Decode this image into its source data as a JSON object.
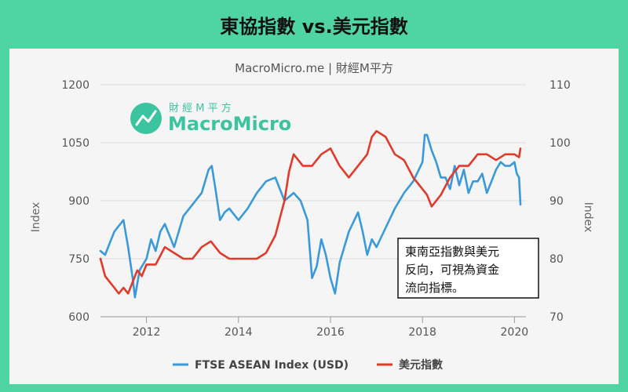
{
  "header": {
    "title": "東協指數 vs.美元指數"
  },
  "logo": {
    "sub": "財 經 M 平 方",
    "main": "MacroMicro",
    "color": "#3cc3a0"
  },
  "annotation": {
    "lines": [
      "東南亞指數與美元",
      "反向，可視為資金",
      "流向指標。"
    ]
  },
  "chart_data": {
    "type": "line",
    "title": "MacroMicro.me | 財經M平方",
    "ylabel_left": "Index",
    "ylabel_right": "Index",
    "ylim_left": [
      600,
      1200
    ],
    "ylim_right": [
      70,
      110
    ],
    "yticks_left": [
      "600",
      "750",
      "900",
      "1050",
      "1200"
    ],
    "yticks_right": [
      "70",
      "80",
      "90",
      "100",
      "110"
    ],
    "xlim": [
      2011.0,
      2020.25
    ],
    "xticks": [
      "2012",
      "2014",
      "2016",
      "2018",
      "2020"
    ],
    "legend_position": "bottom",
    "series": [
      {
        "name": "FTSE ASEAN Index (USD)",
        "color": "#3a9ad9",
        "axis": "left",
        "x": [
          2011.0,
          2011.1,
          2011.2,
          2011.3,
          2011.4,
          2011.5,
          2011.6,
          2011.7,
          2011.75,
          2011.85,
          2012.0,
          2012.1,
          2012.2,
          2012.3,
          2012.4,
          2012.5,
          2012.6,
          2012.8,
          2013.0,
          2013.2,
          2013.35,
          2013.42,
          2013.5,
          2013.6,
          2013.7,
          2013.8,
          2014.0,
          2014.2,
          2014.4,
          2014.6,
          2014.8,
          2015.0,
          2015.2,
          2015.35,
          2015.5,
          2015.6,
          2015.7,
          2015.8,
          2015.9,
          2016.0,
          2016.1,
          2016.2,
          2016.4,
          2016.6,
          2016.7,
          2016.8,
          2016.9,
          2017.0,
          2017.2,
          2017.4,
          2017.6,
          2017.8,
          2018.0,
          2018.05,
          2018.1,
          2018.2,
          2018.3,
          2018.4,
          2018.5,
          2018.6,
          2018.7,
          2018.8,
          2018.9,
          2019.0,
          2019.1,
          2019.2,
          2019.3,
          2019.4,
          2019.5,
          2019.6,
          2019.7,
          2019.8,
          2019.9,
          2020.0,
          2020.05,
          2020.1,
          2020.13
        ],
        "values": [
          770,
          760,
          790,
          820,
          835,
          850,
          780,
          700,
          650,
          720,
          750,
          800,
          770,
          820,
          840,
          810,
          780,
          860,
          890,
          920,
          980,
          990,
          930,
          850,
          870,
          880,
          850,
          880,
          920,
          950,
          960,
          900,
          920,
          900,
          850,
          700,
          730,
          800,
          760,
          700,
          660,
          740,
          820,
          870,
          820,
          760,
          800,
          780,
          830,
          880,
          920,
          950,
          1000,
          1070,
          1070,
          1030,
          1000,
          960,
          960,
          930,
          990,
          940,
          980,
          920,
          950,
          950,
          970,
          920,
          950,
          980,
          1000,
          990,
          990,
          1000,
          970,
          960,
          890
        ]
      },
      {
        "name": "美元指數",
        "color": "#e03a2a",
        "axis": "right",
        "x": [
          2011.0,
          2011.1,
          2011.2,
          2011.3,
          2011.4,
          2011.5,
          2011.6,
          2011.7,
          2011.8,
          2011.9,
          2012.0,
          2012.2,
          2012.4,
          2012.6,
          2012.8,
          2013.0,
          2013.2,
          2013.4,
          2013.6,
          2013.8,
          2014.0,
          2014.2,
          2014.4,
          2014.6,
          2014.8,
          2015.0,
          2015.1,
          2015.2,
          2015.4,
          2015.6,
          2015.8,
          2016.0,
          2016.2,
          2016.4,
          2016.6,
          2016.8,
          2016.9,
          2017.0,
          2017.2,
          2017.4,
          2017.6,
          2017.8,
          2018.0,
          2018.1,
          2018.2,
          2018.4,
          2018.6,
          2018.8,
          2019.0,
          2019.2,
          2019.4,
          2019.6,
          2019.8,
          2020.0,
          2020.1,
          2020.13
        ],
        "values": [
          80,
          77,
          76,
          75,
          74,
          75,
          74,
          76,
          78,
          77,
          79,
          79,
          82,
          81,
          80,
          80,
          82,
          83,
          81,
          80,
          80,
          80,
          80,
          81,
          84,
          90,
          95,
          98,
          96,
          96,
          98,
          99,
          96,
          94,
          96,
          98,
          101,
          102,
          101,
          98,
          97,
          94,
          92,
          91,
          89,
          91,
          94,
          96,
          96,
          98,
          98,
          97,
          98,
          98,
          97.5,
          99
        ]
      }
    ]
  }
}
